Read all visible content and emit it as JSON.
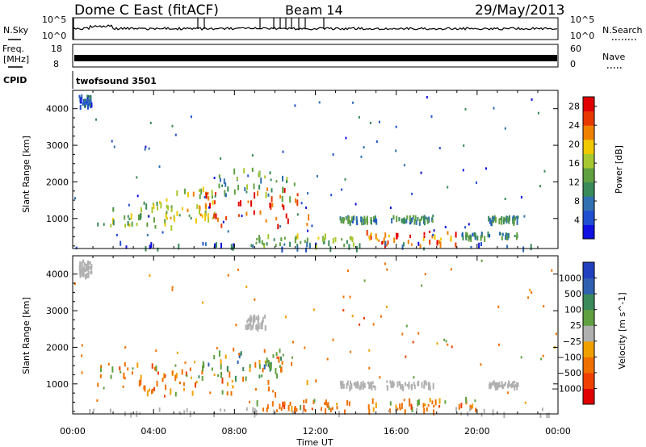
{
  "header": {
    "station": "Dome C East (fitACF)",
    "beam": "Beam 14",
    "date": "29/May/2013"
  },
  "panels": {
    "nsky": {
      "label": "N.Sky",
      "ticks": [
        "10^5",
        "10^0"
      ]
    },
    "nsearch": {
      "label": "N.Search",
      "ticks": [
        "10^5",
        "10^0"
      ]
    },
    "freq": {
      "label_line1": "Freq.",
      "label_line2": "[MHz]",
      "ticks": [
        "18",
        "8"
      ]
    },
    "nave": {
      "label": "Nave",
      "ticks": [
        "60",
        "0"
      ]
    },
    "cpid": {
      "label": "CPID",
      "value": "twofsound 3501"
    }
  },
  "colors": {
    "power_scale": [
      "#1010e0",
      "#2050d0",
      "#3070b0",
      "#3a8a5a",
      "#60a040",
      "#a8c830",
      "#f0c800",
      "#f08000",
      "#e83800",
      "#e00000"
    ],
    "velocity_scale": [
      "#2040c0",
      "#3060b0",
      "#3a8a5a",
      "#60a040",
      "#b0b0b0",
      "#f0a000",
      "#f07000",
      "#f04000",
      "#e00000"
    ],
    "ground_scatter": "#b0b0b0"
  },
  "chart_data": [
    {
      "type": "heatmap",
      "title": "",
      "xlabel": "Time UT",
      "ylabel": "Slant Range [km]",
      "x_ticks": [
        "00:00",
        "04:00",
        "08:00",
        "12:00",
        "16:00",
        "20:00",
        "00:00"
      ],
      "y_ticks": [
        "1000",
        "2000",
        "3000",
        "4000"
      ],
      "xlim": [
        0,
        24
      ],
      "ylim": [
        180,
        4500
      ],
      "colorbar": {
        "label": "Power [dB]",
        "ticks": [
          "4",
          "8",
          "12",
          "16",
          "20",
          "24",
          "28"
        ],
        "range": [
          0,
          30
        ]
      },
      "regions": [
        {
          "t_start": 0.3,
          "t_end": 0.9,
          "r_start": 4100,
          "r_end": 4400,
          "power": 6
        },
        {
          "t_start": 1.2,
          "t_end": 5.0,
          "r_start": 800,
          "r_end": 1500,
          "power": 14
        },
        {
          "t_start": 4.5,
          "t_end": 7.0,
          "r_start": 1000,
          "r_end": 1900,
          "power": 18
        },
        {
          "t_start": 6.5,
          "t_end": 11.8,
          "r_start": 800,
          "r_end": 1900,
          "power": 26
        },
        {
          "t_start": 7.0,
          "t_end": 11.0,
          "r_start": 1600,
          "r_end": 2400,
          "power": 12
        },
        {
          "t_start": 9.0,
          "t_end": 14.0,
          "r_start": 300,
          "r_end": 600,
          "power": 14
        },
        {
          "t_start": 13.2,
          "t_end": 15.0,
          "r_start": 950,
          "r_end": 1100,
          "power": 10
        },
        {
          "t_start": 15.5,
          "t_end": 17.8,
          "r_start": 950,
          "r_end": 1100,
          "power": 10
        },
        {
          "t_start": 14.5,
          "t_end": 19.0,
          "r_start": 300,
          "r_end": 700,
          "power": 24
        },
        {
          "t_start": 19.0,
          "t_end": 22.0,
          "r_start": 500,
          "r_end": 650,
          "power": 10
        },
        {
          "t_start": 20.5,
          "t_end": 22.0,
          "r_start": 950,
          "r_end": 1100,
          "power": 10
        },
        {
          "t_start": 0.0,
          "t_end": 24.0,
          "r_start": 200,
          "r_end": 400,
          "power": 6
        }
      ]
    },
    {
      "type": "heatmap",
      "title": "",
      "xlabel": "Time UT",
      "ylabel": "Slant Range [km]",
      "x_ticks": [
        "00:00",
        "04:00",
        "08:00",
        "12:00",
        "16:00",
        "20:00",
        "00:00"
      ],
      "y_ticks": [
        "1000",
        "2000",
        "3000",
        "4000"
      ],
      "xlim": [
        0,
        24
      ],
      "ylim": [
        180,
        4500
      ],
      "colorbar": {
        "label": "Velocity [m s^-1]",
        "ticks": [
          "1000",
          "500",
          "100",
          "25",
          "−25",
          "−100",
          "−500",
          "−1000"
        ],
        "range": [
          -1000,
          1000
        ]
      },
      "regions": [
        {
          "t_start": 0.3,
          "t_end": 0.9,
          "r_start": 4000,
          "r_end": 4400,
          "velocity": 0,
          "ground": true
        },
        {
          "t_start": 1.2,
          "t_end": 5.5,
          "r_start": 800,
          "r_end": 1600,
          "velocity": -300
        },
        {
          "t_start": 5.0,
          "t_end": 12.0,
          "r_start": 700,
          "r_end": 2000,
          "velocity": -400
        },
        {
          "t_start": 6.0,
          "t_end": 10.5,
          "r_start": 1200,
          "r_end": 2000,
          "velocity": 150
        },
        {
          "t_start": 8.5,
          "t_end": 9.5,
          "r_start": 2600,
          "r_end": 2900,
          "velocity": 0,
          "ground": true
        },
        {
          "t_start": 9.0,
          "t_end": 14.0,
          "r_start": 300,
          "r_end": 600,
          "velocity": -300
        },
        {
          "t_start": 13.2,
          "t_end": 15.0,
          "r_start": 950,
          "r_end": 1100,
          "velocity": 0,
          "ground": true
        },
        {
          "t_start": 15.5,
          "t_end": 17.8,
          "r_start": 950,
          "r_end": 1100,
          "velocity": 0,
          "ground": true
        },
        {
          "t_start": 14.5,
          "t_end": 20.0,
          "r_start": 300,
          "r_end": 650,
          "velocity": -400
        },
        {
          "t_start": 20.5,
          "t_end": 22.0,
          "r_start": 950,
          "r_end": 1100,
          "velocity": 0,
          "ground": true
        },
        {
          "t_start": 0.0,
          "t_end": 24.0,
          "r_start": 200,
          "r_end": 380,
          "velocity": 0,
          "ground": true
        }
      ]
    }
  ]
}
